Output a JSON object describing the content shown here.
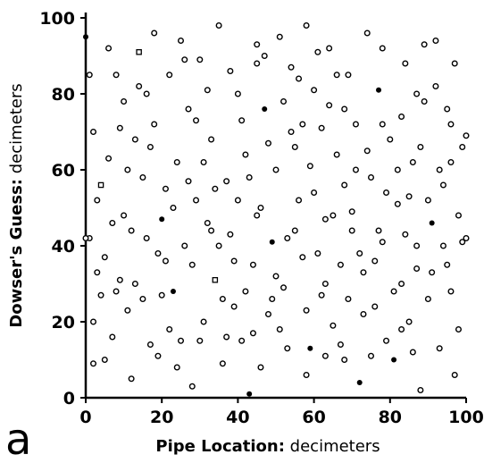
{
  "panel_label": "a",
  "chart_data": {
    "type": "scatter",
    "title": "",
    "xlabel_bold": "Pipe Location:",
    "xlabel_rest": "decimeters",
    "ylabel_bold": "Dowser's Guess:",
    "ylabel_rest": "decimeters",
    "xlim": [
      0,
      100
    ],
    "ylim": [
      0,
      100
    ],
    "xticks": [
      0,
      20,
      40,
      60,
      80,
      100
    ],
    "yticks": [
      0,
      20,
      40,
      60,
      80,
      100
    ],
    "grid": false,
    "points": [
      [
        0,
        95,
        "filled"
      ],
      [
        1,
        42,
        "circle"
      ],
      [
        2,
        20,
        "circle"
      ],
      [
        3,
        33,
        "circle"
      ],
      [
        4,
        56,
        "square"
      ],
      [
        5,
        37,
        "circle"
      ],
      [
        6,
        92,
        "circle"
      ],
      [
        7,
        16,
        "circle"
      ],
      [
        8,
        28,
        "circle"
      ],
      [
        9,
        71,
        "circle"
      ],
      [
        10,
        48,
        "circle"
      ],
      [
        11,
        60,
        "circle"
      ],
      [
        12,
        5,
        "circle"
      ],
      [
        13,
        30,
        "circle"
      ],
      [
        14,
        82,
        "circle"
      ],
      [
        15,
        26,
        "circle"
      ],
      [
        16,
        42,
        "circle"
      ],
      [
        17,
        66,
        "circle"
      ],
      [
        18,
        96,
        "circle"
      ],
      [
        19,
        11,
        "circle"
      ],
      [
        20,
        47,
        "filled"
      ],
      [
        21,
        36,
        "circle"
      ],
      [
        22,
        85,
        "circle"
      ],
      [
        23,
        28,
        "filled"
      ],
      [
        24,
        62,
        "circle"
      ],
      [
        25,
        15,
        "circle"
      ],
      [
        26,
        40,
        "circle"
      ],
      [
        27,
        76,
        "circle"
      ],
      [
        28,
        3,
        "circle"
      ],
      [
        29,
        52,
        "circle"
      ],
      [
        30,
        89,
        "circle"
      ],
      [
        31,
        20,
        "circle"
      ],
      [
        32,
        46,
        "circle"
      ],
      [
        33,
        68,
        "circle"
      ],
      [
        34,
        31,
        "square"
      ],
      [
        35,
        98,
        "circle"
      ],
      [
        36,
        9,
        "circle"
      ],
      [
        37,
        57,
        "circle"
      ],
      [
        38,
        43,
        "circle"
      ],
      [
        39,
        24,
        "circle"
      ],
      [
        40,
        80,
        "circle"
      ],
      [
        41,
        15,
        "circle"
      ],
      [
        42,
        64,
        "circle"
      ],
      [
        43,
        1,
        "filled"
      ],
      [
        44,
        35,
        "circle"
      ],
      [
        45,
        88,
        "circle"
      ],
      [
        46,
        50,
        "circle"
      ],
      [
        47,
        76,
        "filled"
      ],
      [
        48,
        22,
        "circle"
      ],
      [
        49,
        41,
        "filled"
      ],
      [
        50,
        60,
        "circle"
      ],
      [
        51,
        95,
        "circle"
      ],
      [
        52,
        29,
        "circle"
      ],
      [
        53,
        13,
        "circle"
      ],
      [
        54,
        70,
        "circle"
      ],
      [
        55,
        44,
        "circle"
      ],
      [
        56,
        84,
        "circle"
      ],
      [
        57,
        37,
        "circle"
      ],
      [
        58,
        6,
        "circle"
      ],
      [
        59,
        13,
        "filled"
      ],
      [
        60,
        54,
        "circle"
      ],
      [
        61,
        91,
        "circle"
      ],
      [
        62,
        27,
        "circle"
      ],
      [
        63,
        47,
        "circle"
      ],
      [
        64,
        77,
        "circle"
      ],
      [
        65,
        19,
        "circle"
      ],
      [
        66,
        64,
        "circle"
      ],
      [
        67,
        35,
        "circle"
      ],
      [
        68,
        10,
        "circle"
      ],
      [
        69,
        85,
        "circle"
      ],
      [
        70,
        49,
        "circle"
      ],
      [
        71,
        72,
        "circle"
      ],
      [
        72,
        4,
        "filled"
      ],
      [
        73,
        33,
        "circle"
      ],
      [
        74,
        96,
        "circle"
      ],
      [
        75,
        58,
        "circle"
      ],
      [
        76,
        24,
        "circle"
      ],
      [
        77,
        81,
        "filled"
      ],
      [
        78,
        41,
        "circle"
      ],
      [
        79,
        15,
        "circle"
      ],
      [
        80,
        68,
        "circle"
      ],
      [
        81,
        10,
        "filled"
      ],
      [
        82,
        51,
        "circle"
      ],
      [
        83,
        30,
        "circle"
      ],
      [
        84,
        88,
        "circle"
      ],
      [
        85,
        20,
        "circle"
      ],
      [
        86,
        62,
        "circle"
      ],
      [
        87,
        40,
        "circle"
      ],
      [
        88,
        2,
        "circle"
      ],
      [
        89,
        78,
        "circle"
      ],
      [
        90,
        26,
        "circle"
      ],
      [
        91,
        46,
        "filled"
      ],
      [
        92,
        94,
        "circle"
      ],
      [
        93,
        13,
        "circle"
      ],
      [
        94,
        56,
        "circle"
      ],
      [
        95,
        35,
        "circle"
      ],
      [
        96,
        72,
        "circle"
      ],
      [
        97,
        6,
        "circle"
      ],
      [
        98,
        48,
        "circle"
      ],
      [
        99,
        66,
        "circle"
      ],
      [
        2,
        70,
        "circle"
      ],
      [
        5,
        10,
        "circle"
      ],
      [
        8,
        85,
        "circle"
      ],
      [
        12,
        44,
        "circle"
      ],
      [
        15,
        58,
        "circle"
      ],
      [
        18,
        72,
        "circle"
      ],
      [
        22,
        18,
        "circle"
      ],
      [
        27,
        57,
        "circle"
      ],
      [
        33,
        44,
        "circle"
      ],
      [
        38,
        86,
        "circle"
      ],
      [
        42,
        28,
        "circle"
      ],
      [
        46,
        8,
        "circle"
      ],
      [
        52,
        78,
        "circle"
      ],
      [
        56,
        52,
        "circle"
      ],
      [
        61,
        38,
        "circle"
      ],
      [
        64,
        92,
        "circle"
      ],
      [
        68,
        56,
        "circle"
      ],
      [
        73,
        22,
        "circle"
      ],
      [
        77,
        44,
        "circle"
      ],
      [
        83,
        74,
        "circle"
      ],
      [
        87,
        34,
        "circle"
      ],
      [
        92,
        82,
        "circle"
      ],
      [
        96,
        28,
        "circle"
      ],
      [
        3,
        52,
        "circle"
      ],
      [
        9,
        31,
        "circle"
      ],
      [
        14,
        91,
        "square"
      ],
      [
        19,
        38,
        "circle"
      ],
      [
        24,
        8,
        "circle"
      ],
      [
        29,
        73,
        "circle"
      ],
      [
        34,
        55,
        "circle"
      ],
      [
        39,
        36,
        "circle"
      ],
      [
        44,
        17,
        "circle"
      ],
      [
        48,
        67,
        "circle"
      ],
      [
        53,
        42,
        "circle"
      ],
      [
        58,
        23,
        "circle"
      ],
      [
        62,
        71,
        "circle"
      ],
      [
        67,
        14,
        "circle"
      ],
      [
        71,
        60,
        "circle"
      ],
      [
        76,
        36,
        "circle"
      ],
      [
        81,
        28,
        "circle"
      ],
      [
        85,
        53,
        "circle"
      ],
      [
        89,
        93,
        "circle"
      ],
      [
        94,
        40,
        "circle"
      ],
      [
        98,
        18,
        "circle"
      ],
      [
        1,
        85,
        "circle"
      ],
      [
        6,
        63,
        "circle"
      ],
      [
        11,
        23,
        "circle"
      ],
      [
        16,
        80,
        "circle"
      ],
      [
        21,
        55,
        "circle"
      ],
      [
        26,
        89,
        "circle"
      ],
      [
        31,
        62,
        "circle"
      ],
      [
        36,
        26,
        "circle"
      ],
      [
        41,
        73,
        "circle"
      ],
      [
        45,
        48,
        "circle"
      ],
      [
        50,
        32,
        "circle"
      ],
      [
        55,
        66,
        "circle"
      ],
      [
        60,
        81,
        "circle"
      ],
      [
        65,
        48,
        "circle"
      ],
      [
        69,
        26,
        "circle"
      ],
      [
        74,
        65,
        "circle"
      ],
      [
        79,
        54,
        "circle"
      ],
      [
        84,
        43,
        "circle"
      ],
      [
        88,
        66,
        "circle"
      ],
      [
        93,
        60,
        "circle"
      ],
      [
        97,
        88,
        "circle"
      ],
      [
        4,
        27,
        "circle"
      ],
      [
        10,
        78,
        "circle"
      ],
      [
        17,
        14,
        "circle"
      ],
      [
        23,
        50,
        "circle"
      ],
      [
        28,
        35,
        "circle"
      ],
      [
        32,
        81,
        "circle"
      ],
      [
        37,
        16,
        "circle"
      ],
      [
        43,
        58,
        "circle"
      ],
      [
        47,
        90,
        "circle"
      ],
      [
        51,
        18,
        "circle"
      ],
      [
        57,
        72,
        "circle"
      ],
      [
        63,
        30,
        "circle"
      ],
      [
        66,
        85,
        "circle"
      ],
      [
        70,
        44,
        "circle"
      ],
      [
        75,
        11,
        "circle"
      ],
      [
        78,
        92,
        "circle"
      ],
      [
        82,
        60,
        "circle"
      ],
      [
        86,
        12,
        "circle"
      ],
      [
        90,
        52,
        "circle"
      ],
      [
        95,
        76,
        "circle"
      ],
      [
        99,
        41,
        "circle"
      ],
      [
        7,
        46,
        "circle"
      ],
      [
        13,
        68,
        "circle"
      ],
      [
        20,
        27,
        "circle"
      ],
      [
        25,
        94,
        "circle"
      ],
      [
        30,
        15,
        "circle"
      ],
      [
        35,
        40,
        "circle"
      ],
      [
        40,
        52,
        "circle"
      ],
      [
        45,
        93,
        "circle"
      ],
      [
        49,
        26,
        "circle"
      ],
      [
        54,
        87,
        "circle"
      ],
      [
        59,
        61,
        "circle"
      ],
      [
        63,
        11,
        "circle"
      ],
      [
        68,
        76,
        "circle"
      ],
      [
        72,
        38,
        "circle"
      ],
      [
        78,
        72,
        "circle"
      ],
      [
        83,
        18,
        "circle"
      ],
      [
        87,
        80,
        "circle"
      ],
      [
        91,
        33,
        "circle"
      ],
      [
        96,
        62,
        "circle"
      ],
      [
        0,
        42,
        "circle"
      ],
      [
        100,
        42,
        "circle"
      ],
      [
        100,
        69,
        "circle"
      ],
      [
        2,
        9,
        "circle"
      ],
      [
        58,
        98,
        "circle"
      ]
    ]
  }
}
